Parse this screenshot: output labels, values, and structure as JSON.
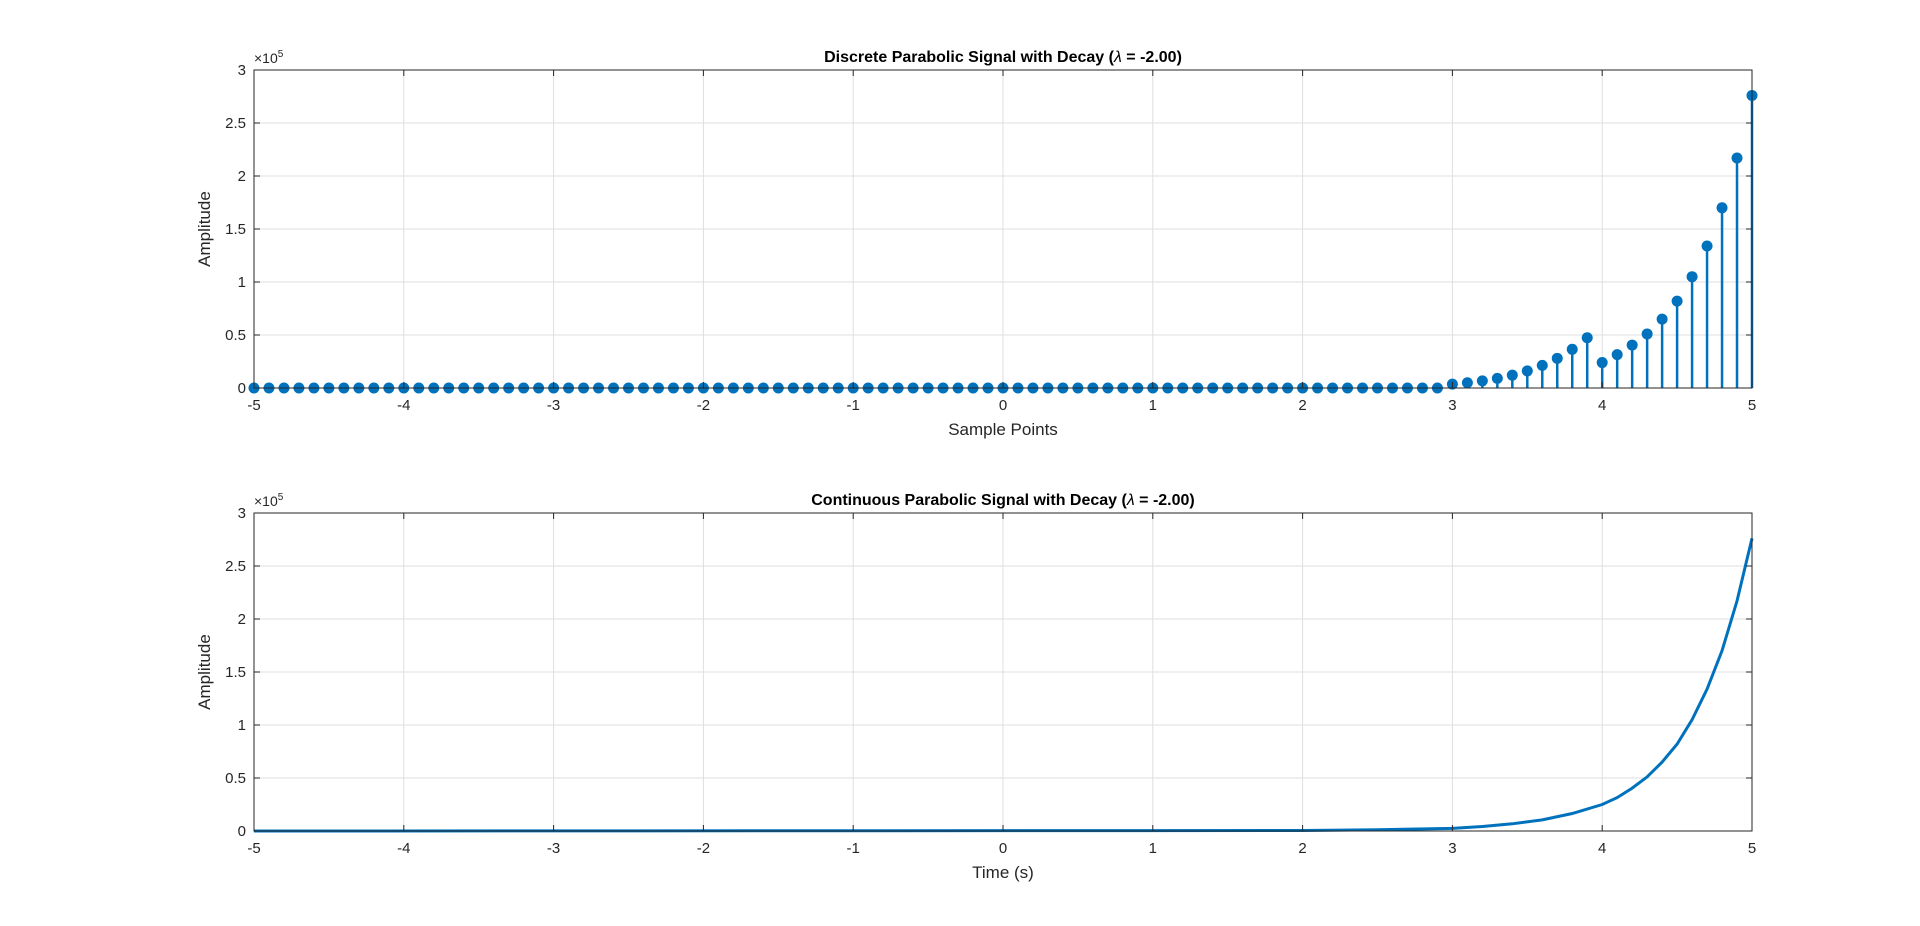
{
  "colors": {
    "series": "#0072BD",
    "grid": "#DFDFDF",
    "axis": "#262626",
    "background": "#FFFFFF"
  },
  "chart_data": [
    {
      "type": "stem",
      "title": "Discrete Parabolic Signal with Decay (λ = -2.00)",
      "title_prefix": "Discrete Parabolic Signal with Decay (",
      "title_lambda": "λ",
      "title_suffix": " = -2.00)",
      "xlabel": "Sample Points",
      "ylabel": "Amplitude",
      "xlim": [
        -5,
        5
      ],
      "ylim": [
        0,
        300000
      ],
      "xticks": [
        -5,
        -4,
        -3,
        -2,
        -1,
        0,
        1,
        2,
        3,
        4,
        5
      ],
      "yticks": [
        0,
        50000,
        100000,
        150000,
        200000,
        250000,
        300000
      ],
      "ytick_labels": [
        "0",
        "0.5",
        "1",
        "1.5",
        "2",
        "2.5",
        "3"
      ],
      "y_multiplier_base": "×10",
      "y_multiplier_exp": "5",
      "grid": true,
      "x": [
        3.0,
        3.1,
        3.2,
        3.3,
        3.4,
        3.5,
        3.6,
        3.7,
        3.8,
        3.9,
        4.0,
        4.1,
        4.2,
        4.3,
        4.4,
        4.5,
        4.6,
        4.7,
        4.8,
        4.9,
        5.0
      ],
      "y": [
        3650,
        4970,
        6730,
        9050,
        12100,
        16100,
        21300,
        28000,
        36500,
        47400,
        24000,
        31500,
        40500,
        51000,
        65000,
        82000,
        105000,
        134000,
        170000,
        217000,
        276000
      ],
      "baseline_x_range": [
        -5,
        2.9
      ],
      "baseline_step": 0.1,
      "baseline_value": 0
    },
    {
      "type": "line",
      "title": "Continuous Parabolic Signal with Decay (λ = -2.00)",
      "title_prefix": "Continuous Parabolic Signal with Decay (",
      "title_lambda": "λ",
      "title_suffix": " = -2.00)",
      "xlabel": "Time (s)",
      "ylabel": "Amplitude",
      "xlim": [
        -5,
        5
      ],
      "ylim": [
        0,
        300000
      ],
      "xticks": [
        -5,
        -4,
        -3,
        -2,
        -1,
        0,
        1,
        2,
        3,
        4,
        5
      ],
      "yticks": [
        0,
        50000,
        100000,
        150000,
        200000,
        250000,
        300000
      ],
      "ytick_labels": [
        "0",
        "0.5",
        "1",
        "1.5",
        "2",
        "2.5",
        "3"
      ],
      "y_multiplier_base": "×10",
      "y_multiplier_exp": "5",
      "grid": true,
      "x": [
        -5,
        2.0,
        2.5,
        3.0,
        3.2,
        3.4,
        3.6,
        3.8,
        4.0,
        4.1,
        4.2,
        4.3,
        4.4,
        4.5,
        4.6,
        4.7,
        4.8,
        4.9,
        5.0
      ],
      "y": [
        0,
        500,
        1200,
        2500,
        4200,
        6800,
        10500,
        16500,
        25000,
        31500,
        40500,
        51000,
        65000,
        82000,
        105000,
        134000,
        170000,
        217000,
        276000
      ]
    }
  ]
}
